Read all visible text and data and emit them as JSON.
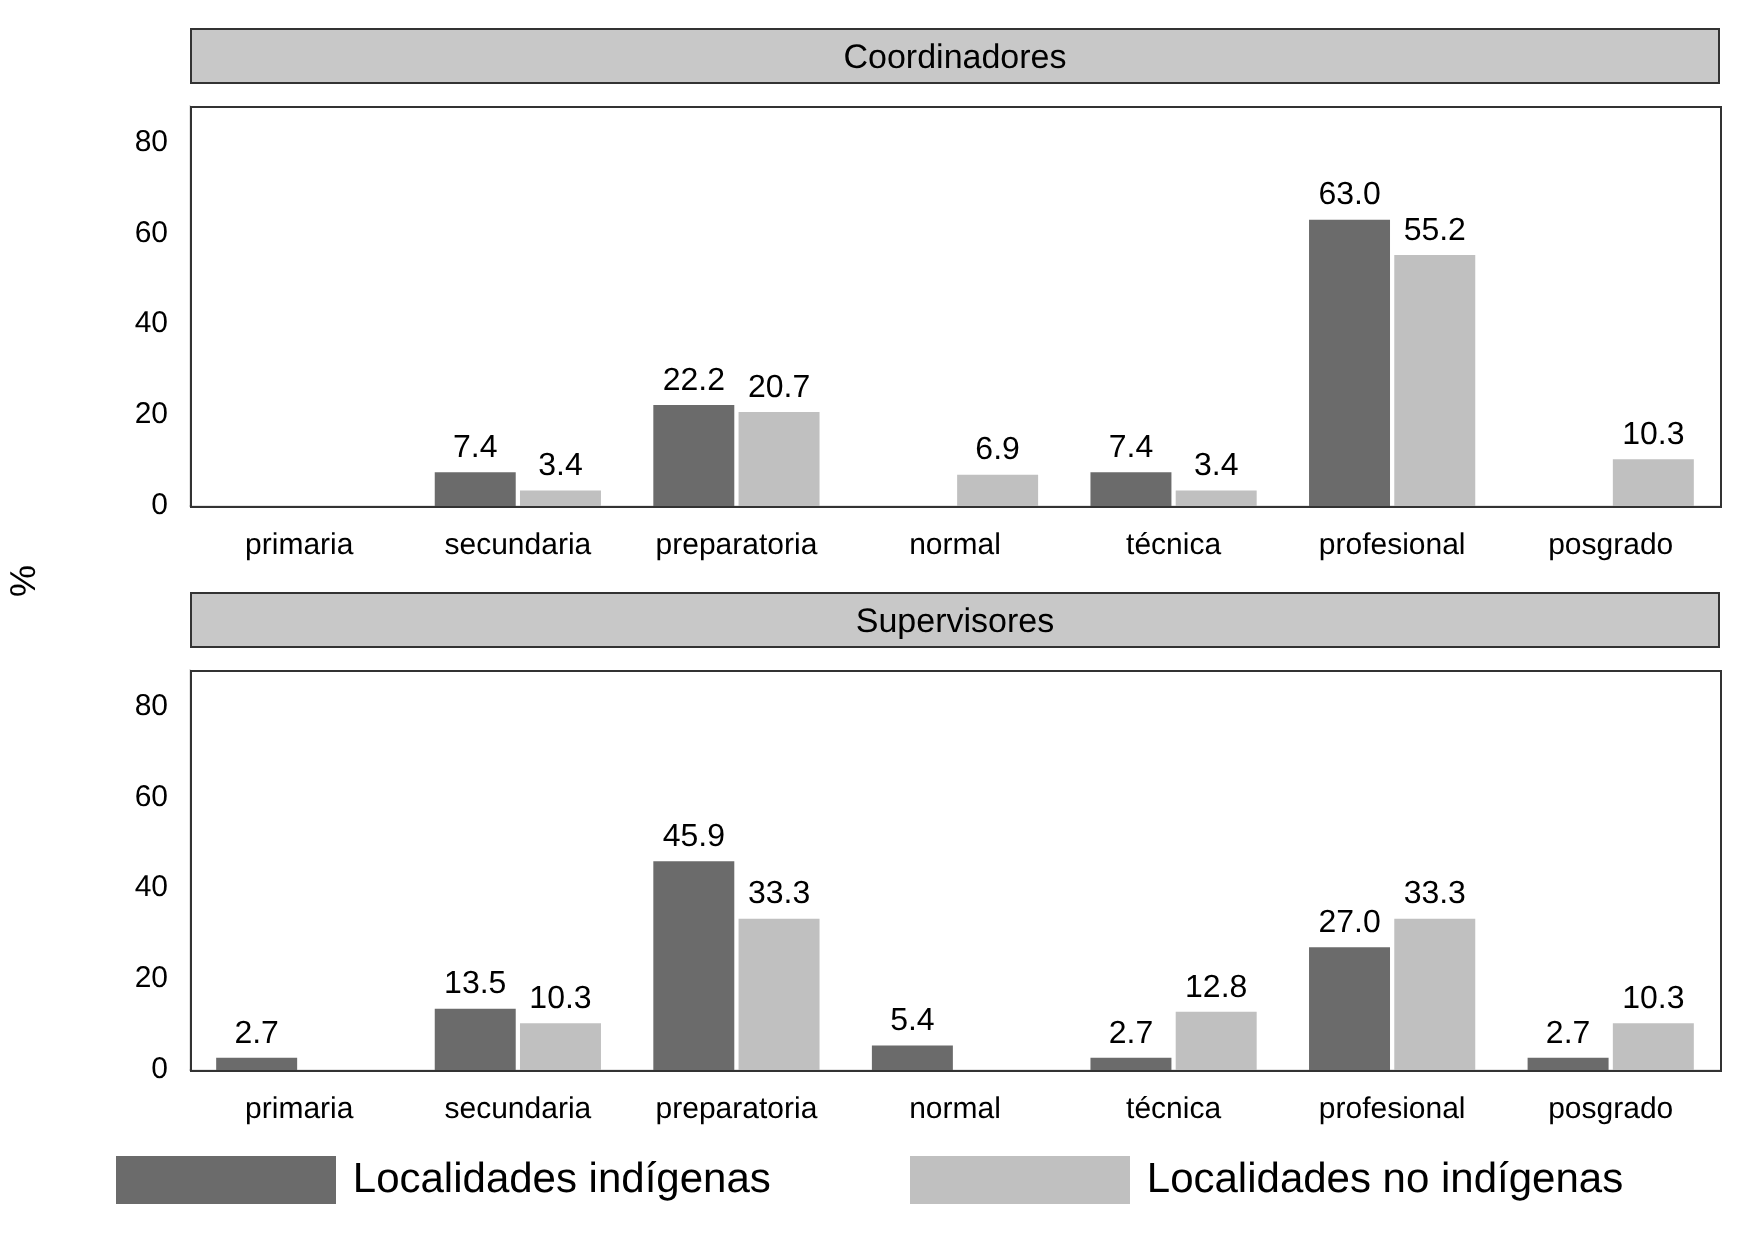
{
  "chart_data": [
    {
      "type": "bar",
      "title": "Coordinadores",
      "ylabel": "%",
      "categories": [
        "primaria",
        "secundaria",
        "preparatoria",
        "normal",
        "técnica",
        "profesional",
        "posgrado"
      ],
      "ylim": [
        0,
        88
      ],
      "yticks": [
        0,
        20,
        40,
        60,
        80
      ],
      "grid": false,
      "legend": false,
      "series": [
        {
          "color": "#6b6b6b",
          "values": [
            0,
            7.4,
            22.2,
            0,
            7.4,
            63.0,
            0
          ],
          "value_labels": [
            null,
            "7.4",
            "22.2",
            null,
            "7.4",
            "63.0",
            null
          ]
        },
        {
          "color": "#c0c0c0",
          "values": [
            0,
            3.4,
            20.7,
            6.9,
            3.4,
            55.2,
            10.3
          ],
          "value_labels": [
            null,
            "3.4",
            "20.7",
            "6.9",
            "3.4",
            "55.2",
            "10.3"
          ]
        }
      ]
    },
    {
      "type": "bar",
      "title": "Supervisores",
      "categories": [
        "primaria",
        "secundaria",
        "preparatoria",
        "normal",
        "técnica",
        "profesional",
        "posgrado"
      ],
      "ylim": [
        0,
        88
      ],
      "yticks": [
        0,
        20,
        40,
        60,
        80
      ],
      "grid": false,
      "legend": "bottom",
      "series": [
        {
          "name": "Localidades indígenas",
          "color": "#6b6b6b",
          "values": [
            2.7,
            13.5,
            45.9,
            5.4,
            2.7,
            27.0,
            2.7
          ],
          "value_labels": [
            "2.7",
            "13.5",
            "45.9",
            "5.4",
            "2.7",
            "27.0",
            "2.7"
          ]
        },
        {
          "name": "Localidades no indígenas",
          "color": "#c0c0c0",
          "values": [
            0,
            10.3,
            33.3,
            0,
            12.8,
            33.3,
            10.3
          ],
          "value_labels": [
            null,
            "10.3",
            "33.3",
            null,
            "12.8",
            "33.3",
            "10.3"
          ]
        }
      ]
    }
  ]
}
